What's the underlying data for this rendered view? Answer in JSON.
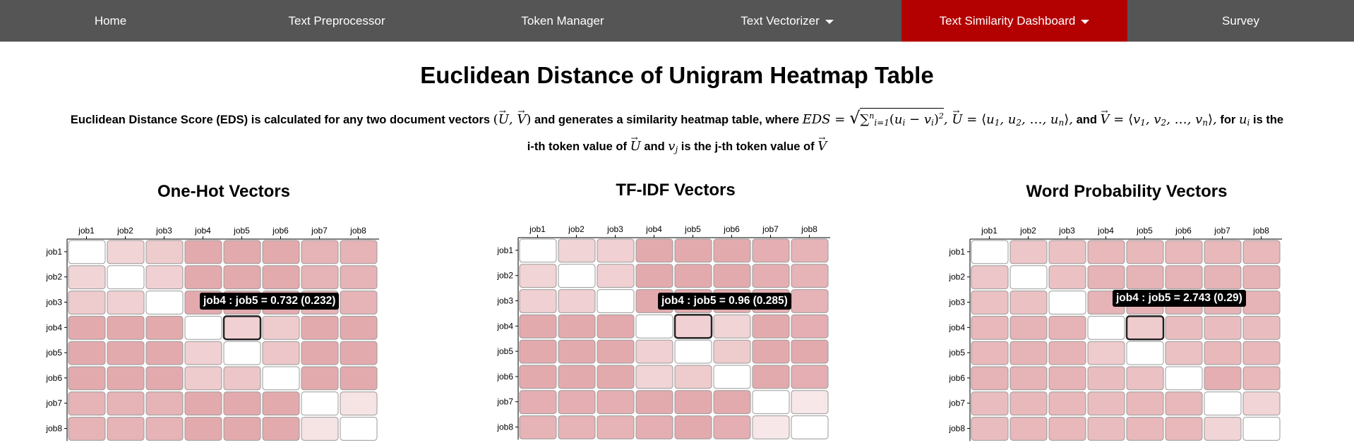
{
  "nav": {
    "items": [
      {
        "label": "Home",
        "dropdown": false,
        "active": false
      },
      {
        "label": "Text Preprocessor",
        "dropdown": false,
        "active": false
      },
      {
        "label": "Token Manager",
        "dropdown": false,
        "active": false
      },
      {
        "label": "Text Vectorizer",
        "dropdown": true,
        "active": false
      },
      {
        "label": "Text Similarity Dashboard",
        "dropdown": true,
        "active": true
      },
      {
        "label": "Survey",
        "dropdown": false,
        "active": false
      }
    ]
  },
  "page": {
    "title": "Euclidean Distance of Unigram Heatmap Table",
    "desc_part1": "Euclidean Distance Score (EDS) is calculated for any two document vectors",
    "desc_part2": "and generates a similarity heatmap table, where",
    "desc_part3": "and",
    "desc_part4": "for",
    "desc_part5": "is the i-th token value of",
    "desc_part6": "and",
    "desc_part7": "is the j-th token value of"
  },
  "colors": {
    "nav_bg": "#555555",
    "nav_active": "#b30000",
    "cell_max": "#e0a0a4",
    "cell_zero": "#ffffff"
  },
  "chart_data": [
    {
      "type": "heatmap",
      "title": "One-Hot Vectors",
      "x": [
        "job1",
        "job2",
        "job3",
        "job4",
        "job5",
        "job6",
        "job7",
        "job8"
      ],
      "y": [
        "job1",
        "job2",
        "job3",
        "job4",
        "job5",
        "job6",
        "job7",
        "job8"
      ],
      "values": [
        [
          0,
          0.45,
          0.55,
          0.9,
          0.9,
          0.9,
          0.8,
          0.8
        ],
        [
          0.45,
          0,
          0.5,
          0.9,
          0.9,
          0.9,
          0.8,
          0.8
        ],
        [
          0.55,
          0.5,
          0,
          0.9,
          0.9,
          0.9,
          0.8,
          0.8
        ],
        [
          0.9,
          0.9,
          0.9,
          0,
          0.5,
          0.55,
          0.9,
          0.9
        ],
        [
          0.9,
          0.9,
          0.9,
          0.5,
          0,
          0.6,
          0.9,
          0.9
        ],
        [
          0.9,
          0.9,
          0.9,
          0.55,
          0.6,
          0,
          0.9,
          0.9
        ],
        [
          0.8,
          0.8,
          0.8,
          0.9,
          0.9,
          0.9,
          0,
          0.3
        ],
        [
          0.8,
          0.8,
          0.8,
          0.9,
          0.9,
          0.9,
          0.3,
          0
        ]
      ],
      "tooltip": "job4 : job5 = 0.732 (0.232)"
    },
    {
      "type": "heatmap",
      "title": "TF-IDF Vectors",
      "x": [
        "job1",
        "job2",
        "job3",
        "job4",
        "job5",
        "job6",
        "job7",
        "job8"
      ],
      "y": [
        "job1",
        "job2",
        "job3",
        "job4",
        "job5",
        "job6",
        "job7",
        "job8"
      ],
      "values": [
        [
          0,
          0.45,
          0.5,
          0.9,
          0.9,
          0.9,
          0.85,
          0.8
        ],
        [
          0.45,
          0,
          0.5,
          0.9,
          0.9,
          0.9,
          0.85,
          0.8
        ],
        [
          0.5,
          0.5,
          0,
          0.9,
          0.9,
          0.9,
          0.85,
          0.8
        ],
        [
          0.9,
          0.9,
          0.9,
          0,
          0.5,
          0.45,
          0.9,
          0.85
        ],
        [
          0.9,
          0.9,
          0.9,
          0.5,
          0,
          0.55,
          0.9,
          0.9
        ],
        [
          0.9,
          0.9,
          0.9,
          0.45,
          0.55,
          0,
          0.9,
          0.85
        ],
        [
          0.85,
          0.85,
          0.85,
          0.9,
          0.9,
          0.9,
          0,
          0.25
        ],
        [
          0.8,
          0.8,
          0.8,
          0.85,
          0.9,
          0.85,
          0.25,
          0
        ]
      ],
      "tooltip": "job4 : job5 = 0.96 (0.285)"
    },
    {
      "type": "heatmap",
      "title": "Word Probability Vectors",
      "x": [
        "job1",
        "job2",
        "job3",
        "job4",
        "job5",
        "job6",
        "job7",
        "job8"
      ],
      "y": [
        "job1",
        "job2",
        "job3",
        "job4",
        "job5",
        "job6",
        "job7",
        "job8"
      ],
      "values": [
        [
          0,
          0.6,
          0.65,
          0.75,
          0.75,
          0.75,
          0.75,
          0.75
        ],
        [
          0.6,
          0,
          0.65,
          0.8,
          0.8,
          0.8,
          0.8,
          0.8
        ],
        [
          0.65,
          0.65,
          0,
          0.8,
          0.8,
          0.8,
          0.8,
          0.8
        ],
        [
          0.75,
          0.8,
          0.8,
          0,
          0.55,
          0.7,
          0.7,
          0.7
        ],
        [
          0.75,
          0.8,
          0.8,
          0.55,
          0,
          0.65,
          0.75,
          0.75
        ],
        [
          0.8,
          0.8,
          0.8,
          0.7,
          0.65,
          0,
          0.85,
          0.75
        ],
        [
          0.7,
          0.75,
          0.75,
          0.7,
          0.75,
          0.75,
          0,
          0.45
        ],
        [
          0.7,
          0.75,
          0.75,
          0.7,
          0.75,
          0.75,
          0.45,
          0
        ]
      ],
      "tooltip": "job4 : job5 = 2.743 (0.29)"
    }
  ]
}
